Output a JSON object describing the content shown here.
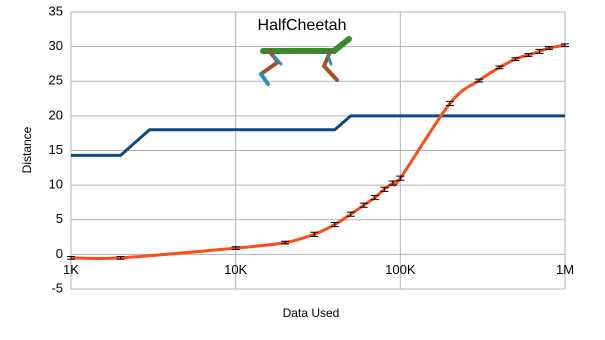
{
  "chart_data": {
    "type": "line",
    "title": "HalfCheetah",
    "x_label": "Data Used",
    "y_label": "Distance",
    "x_scale": "log",
    "grid": true,
    "xlim": [
      1000,
      1000000
    ],
    "xticks": [
      {
        "value": 1000,
        "label": "1K"
      },
      {
        "value": 10000,
        "label": "10K"
      },
      {
        "value": 100000,
        "label": "100K"
      },
      {
        "value": 1000000,
        "label": "1M"
      }
    ],
    "ylim": [
      -5,
      35
    ],
    "yticks": [
      -5,
      0,
      5,
      10,
      15,
      20,
      25,
      30,
      35
    ],
    "series": [
      {
        "color": "#0e4a82",
        "x": [
          1000,
          2000,
          3000,
          40000,
          50000,
          1000000
        ],
        "values": [
          14.3,
          14.3,
          18,
          18,
          20,
          20
        ]
      },
      {
        "color": "#ff4a1c",
        "smooth": true,
        "x": [
          1000,
          2000,
          10000,
          20000,
          30000,
          40000,
          50000,
          60000,
          70000,
          80000,
          90000,
          100000,
          200000,
          300000,
          400000,
          500000,
          600000,
          700000,
          800000,
          1000000
        ],
        "values": [
          -0.5,
          -0.5,
          0.9,
          1.7,
          2.9,
          4.3,
          5.8,
          7.1,
          8.2,
          9.4,
          10.3,
          11,
          21.8,
          25.1,
          27,
          28.2,
          28.8,
          29.3,
          29.8,
          30.2
        ],
        "errors": [
          0.2,
          0.2,
          0.2,
          0.2,
          0.3,
          0.3,
          0.3,
          0.3,
          0.3,
          0.3,
          0.3,
          0.3,
          0.3,
          0.2,
          0.2,
          0.2,
          0.2,
          0.3,
          0.2,
          0.2
        ]
      }
    ]
  }
}
